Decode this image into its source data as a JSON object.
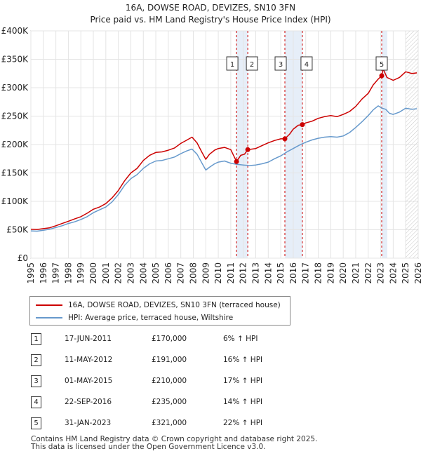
{
  "chart_data": {
    "type": "line",
    "title": "16A, DOWSE ROAD, DEVIZES, SN10 3FN",
    "subtitle": "Price paid vs. HM Land Registry's House Price Index (HPI)",
    "xlabel": "",
    "ylabel": "",
    "xlim": [
      1995,
      2026
    ],
    "ylim": [
      0,
      400000
    ],
    "y_ticks": [
      {
        "value": 0,
        "label": "£0"
      },
      {
        "value": 50000,
        "label": "£50K"
      },
      {
        "value": 100000,
        "label": "£100K"
      },
      {
        "value": 150000,
        "label": "£150K"
      },
      {
        "value": 200000,
        "label": "£200K"
      },
      {
        "value": 250000,
        "label": "£250K"
      },
      {
        "value": 300000,
        "label": "£300K"
      },
      {
        "value": 350000,
        "label": "£350K"
      },
      {
        "value": 400000,
        "label": "£400K"
      }
    ],
    "x_ticks": [
      "1995",
      "1996",
      "1997",
      "1998",
      "1999",
      "2000",
      "2001",
      "2002",
      "2003",
      "2004",
      "2005",
      "2006",
      "2007",
      "2008",
      "2009",
      "2010",
      "2011",
      "2012",
      "2013",
      "2014",
      "2015",
      "2016",
      "2017",
      "2018",
      "2019",
      "2020",
      "2021",
      "2022",
      "2023",
      "2024",
      "2025",
      "2026"
    ],
    "grid": true,
    "projection_start": 2025.0,
    "series": [
      {
        "name": "16A, DOWSE ROAD, DEVIZES, SN10 3FN (terraced house)",
        "color": "#cc0000",
        "x": [
          1995.0,
          1995.5,
          1996.0,
          1996.5,
          1997.0,
          1997.5,
          1998.0,
          1998.5,
          1999.0,
          1999.5,
          2000.0,
          2000.5,
          2001.0,
          2001.5,
          2002.0,
          2002.5,
          2003.0,
          2003.5,
          2004.0,
          2004.5,
          2005.0,
          2005.5,
          2006.0,
          2006.5,
          2007.0,
          2007.5,
          2007.9,
          2008.3,
          2008.7,
          2009.0,
          2009.3,
          2009.7,
          2010.0,
          2010.5,
          2011.0,
          2011.46,
          2011.8,
          2012.1,
          2012.36,
          2012.7,
          2013.0,
          2013.5,
          2014.0,
          2014.5,
          2015.0,
          2015.33,
          2015.7,
          2016.0,
          2016.4,
          2016.73,
          2017.0,
          2017.5,
          2018.0,
          2018.5,
          2019.0,
          2019.5,
          2020.0,
          2020.5,
          2021.0,
          2021.5,
          2022.0,
          2022.4,
          2022.8,
          2023.08,
          2023.2,
          2023.5,
          2024.0,
          2024.5,
          2025.0,
          2025.5,
          2025.9
        ],
        "y": [
          51000,
          50500,
          52000,
          53500,
          57000,
          61000,
          65000,
          69000,
          73000,
          79000,
          86000,
          90000,
          96000,
          106000,
          119000,
          136000,
          150000,
          158000,
          172000,
          181000,
          186000,
          187000,
          190000,
          194000,
          202000,
          208000,
          213000,
          203000,
          186000,
          174000,
          183000,
          190000,
          193000,
          195000,
          191000,
          170000,
          181000,
          183000,
          191000,
          192000,
          193000,
          198000,
          203000,
          207000,
          210000,
          210000,
          218000,
          227000,
          234000,
          235000,
          238000,
          241000,
          246000,
          249000,
          251000,
          249000,
          253000,
          258000,
          267000,
          280000,
          290000,
          305000,
          315000,
          321000,
          333000,
          318000,
          313000,
          318000,
          328000,
          325000,
          326000
        ]
      },
      {
        "name": "HPI: Average price, terraced house, Wiltshire",
        "color": "#6699cc",
        "x": [
          1995.0,
          1995.5,
          1996.0,
          1996.5,
          1997.0,
          1997.5,
          1998.0,
          1998.5,
          1999.0,
          1999.5,
          2000.0,
          2000.5,
          2001.0,
          2001.5,
          2002.0,
          2002.5,
          2003.0,
          2003.5,
          2004.0,
          2004.5,
          2005.0,
          2005.5,
          2006.0,
          2006.5,
          2007.0,
          2007.5,
          2007.9,
          2008.3,
          2008.7,
          2009.0,
          2009.3,
          2009.7,
          2010.0,
          2010.5,
          2011.0,
          2011.5,
          2012.0,
          2012.5,
          2013.0,
          2013.5,
          2014.0,
          2014.5,
          2015.0,
          2015.5,
          2016.0,
          2016.5,
          2017.0,
          2017.5,
          2018.0,
          2018.5,
          2019.0,
          2019.5,
          2020.0,
          2020.5,
          2021.0,
          2021.5,
          2022.0,
          2022.4,
          2022.8,
          2023.1,
          2023.4,
          2023.7,
          2024.0,
          2024.5,
          2025.0,
          2025.5,
          2025.9
        ],
        "y": [
          48000,
          47500,
          49000,
          51000,
          54000,
          57000,
          61000,
          64000,
          68000,
          73000,
          80000,
          85000,
          90000,
          99000,
          112000,
          128000,
          140000,
          147000,
          158000,
          166000,
          171000,
          172000,
          175000,
          178000,
          184000,
          189000,
          192000,
          183000,
          167000,
          155000,
          160000,
          166000,
          169000,
          171000,
          167000,
          165000,
          164000,
          163000,
          164000,
          166000,
          169000,
          175000,
          180000,
          187000,
          193000,
          199000,
          204000,
          208000,
          211000,
          213000,
          214000,
          213000,
          215000,
          221000,
          230000,
          240000,
          251000,
          261000,
          268000,
          264000,
          262000,
          255000,
          253000,
          257000,
          264000,
          262000,
          263000
        ]
      }
    ],
    "sales": [
      {
        "num": "1",
        "date": "17-JUN-2011",
        "x": 2011.46,
        "price": "£170,000",
        "value": 170000,
        "hpi": "6% ↑ HPI"
      },
      {
        "num": "2",
        "date": "11-MAY-2012",
        "x": 2012.36,
        "price": "£191,000",
        "value": 191000,
        "hpi": "16% ↑ HPI"
      },
      {
        "num": "3",
        "date": "01-MAY-2015",
        "x": 2015.33,
        "price": "£210,000",
        "value": 210000,
        "hpi": "17% ↑ HPI"
      },
      {
        "num": "4",
        "date": "22-SEP-2016",
        "x": 2016.73,
        "price": "£235,000",
        "value": 235000,
        "hpi": "14% ↑ HPI"
      },
      {
        "num": "5",
        "date": "31-JAN-2023",
        "x": 2023.08,
        "price": "£321,000",
        "value": 321000,
        "hpi": "22% ↑ HPI"
      }
    ]
  },
  "footer": {
    "line1": "Contains HM Land Registry data © Crown copyright and database right 2025.",
    "line2": "This data is licensed under the Open Government Licence v3.0."
  }
}
